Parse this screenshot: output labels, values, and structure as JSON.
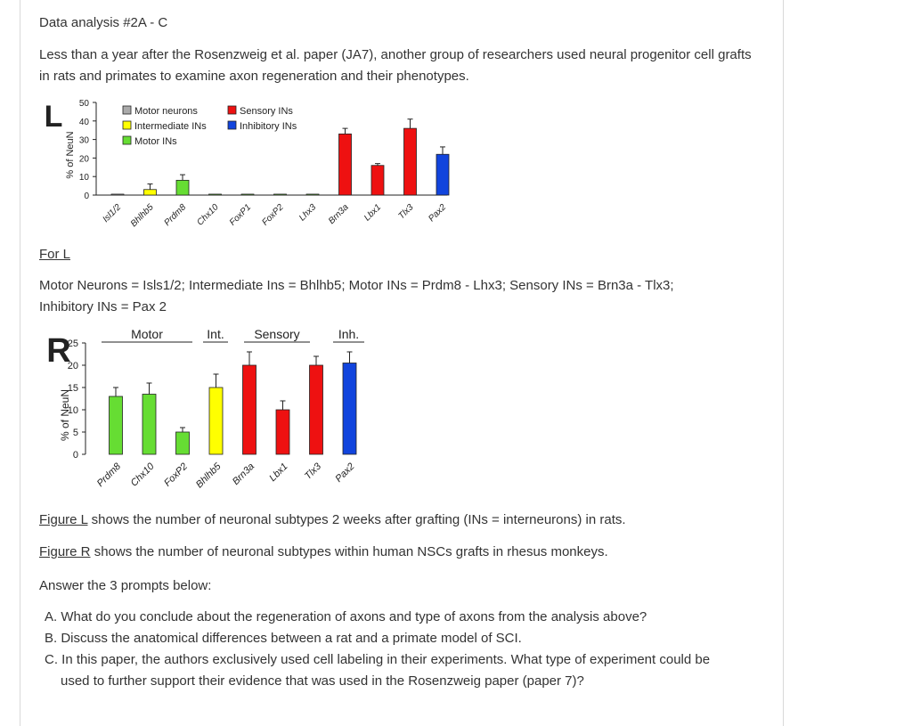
{
  "heading": "Data analysis #2A - C",
  "intro": "Less than a year after the Rosenzweig et al. paper (JA7), another group of researchers used neural progenitor cell grafts in rats and primates to examine axon regeneration and their phenotypes.",
  "for_l": "For L",
  "definitions_line1": "Motor Neurons = Isls1/2; Intermediate Ins = Bhlhb5; Motor INs = Prdm8 - Lhx3; Sensory INs = Brn3a - Tlx3;",
  "definitions_line2": "Inhibitory INs = Pax 2",
  "fig_l_link": "Figure L",
  "fig_l_text": " shows the number of neuronal subtypes 2 weeks after grafting (INs = interneurons) in rats.",
  "fig_r_link": "Figure R",
  "fig_r_text": " shows the number of neuronal subtypes within human NSCs grafts in rhesus monkeys.",
  "prompt_intro": "Answer the 3 prompts below:",
  "prompts": {
    "a": "A. What do you conclude about the regeneration of axons and type of axons from the analysis above?",
    "b": "B. Discuss the anatomical differences between a rat and a primate model of SCI.",
    "c1": "C. In this paper, the authors exclusively used cell labeling in their experiments.  What type of experiment could be",
    "c2": "used to further support their evidence that was used in the Rosenzweig paper (paper 7)?"
  },
  "chart_data": [
    {
      "type": "bar",
      "panel_letter": "L",
      "ylabel": "% of NeuN",
      "ylim": [
        0,
        50
      ],
      "yticks": [
        "50",
        "40",
        "30",
        "20",
        "10",
        "0"
      ],
      "categories": [
        "Isl1/2",
        "Bhlhb5",
        "Prdm8",
        "Chx10",
        "FoxP1",
        "FoxP2",
        "Lhx3",
        "Brn3a",
        "Lbx1",
        "Tlx3",
        "Pax2"
      ],
      "values": [
        0.5,
        3,
        8,
        0.5,
        0.5,
        0.5,
        0.5,
        33,
        16,
        36,
        22
      ],
      "errors": [
        0,
        3,
        3,
        0,
        0,
        0,
        0,
        3,
        1,
        5,
        4
      ],
      "colors": [
        "#aaaaaa",
        "#ffff00",
        "#66dd33",
        "#66dd33",
        "#66dd33",
        "#66dd33",
        "#66dd33",
        "#ee1111",
        "#ee1111",
        "#ee1111",
        "#1144dd"
      ],
      "legend": [
        {
          "label": "Motor neurons",
          "color": "#aaaaaa"
        },
        {
          "label": "Sensory INs",
          "color": "#ee1111"
        },
        {
          "label": "Intermediate INs",
          "color": "#ffff00"
        },
        {
          "label": "Inhibitory INs",
          "color": "#1144dd"
        },
        {
          "label": "Motor INs",
          "color": "#66dd33"
        }
      ]
    },
    {
      "type": "bar",
      "panel_letter": "R",
      "ylabel": "% of NeuN",
      "ylim": [
        0,
        25
      ],
      "yticks": [
        "25",
        "20",
        "15",
        "10",
        "5",
        "0"
      ],
      "categories": [
        "Prdm8",
        "Chx10",
        "FoxP2",
        "Bhlhb5",
        "Brn3a",
        "Lbx1",
        "Tlx3",
        "Pax2"
      ],
      "values": [
        13,
        13.5,
        5,
        15,
        20,
        10,
        20,
        20.5
      ],
      "errors": [
        2,
        2.5,
        1,
        3,
        3,
        2,
        2,
        2.5
      ],
      "colors": [
        "#66dd33",
        "#66dd33",
        "#66dd33",
        "#ffff00",
        "#ee1111",
        "#ee1111",
        "#ee1111",
        "#1144dd"
      ],
      "groups": [
        {
          "label": "Motor"
        },
        {
          "label": "Int."
        },
        {
          "label": "Sensory"
        },
        {
          "label": "Inh."
        }
      ]
    }
  ]
}
